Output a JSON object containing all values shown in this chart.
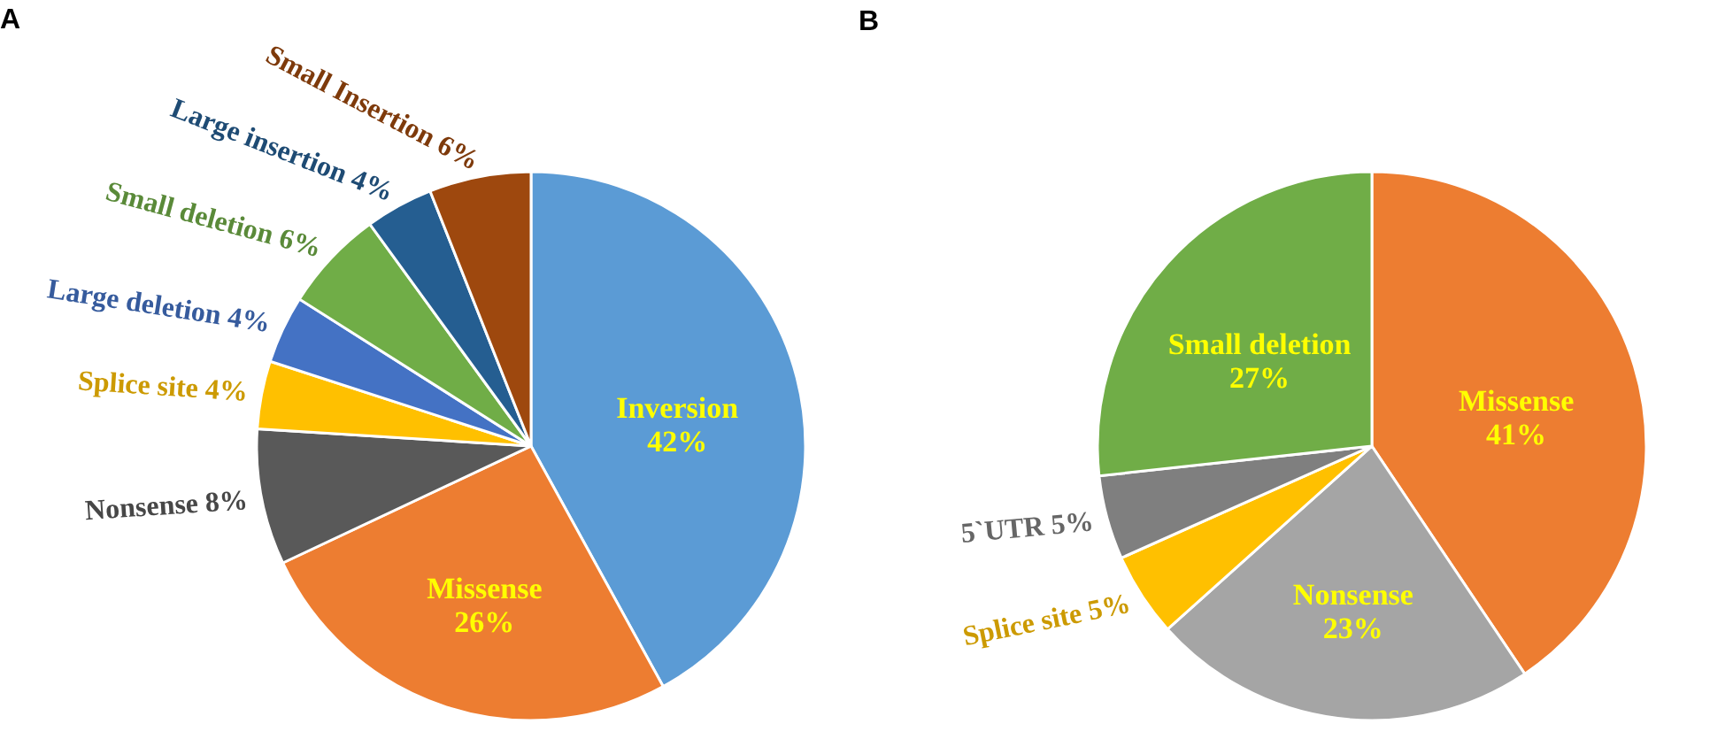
{
  "chart_data": [
    {
      "type": "pie",
      "title": "A",
      "categories": [
        "Inversion",
        "Missense",
        "Nonsense",
        "Splice site",
        "Large deletion",
        "Small deletion",
        "Large insertion",
        "Small Insertion"
      ],
      "values": [
        42,
        26,
        8,
        4,
        4,
        6,
        4,
        6
      ],
      "colors": [
        "#5b9bd5",
        "#ed7d31",
        "#595959",
        "#ffc000",
        "#4472c4",
        "#70ad47",
        "#255e91",
        "#9e480e"
      ],
      "value_labels": [
        "42%",
        "26%",
        "8%",
        "4%",
        "4%",
        "6%",
        "4%",
        "6%"
      ],
      "legend": false
    },
    {
      "type": "pie",
      "title": "B",
      "categories": [
        "Missense",
        "Nonsense",
        "Splice site",
        "5`UTR",
        "Small deletion"
      ],
      "values": [
        41,
        23,
        5,
        5,
        27
      ],
      "colors": [
        "#ed7d31",
        "#a5a5a5",
        "#ffc000",
        "#7f7f7f",
        "#70ad47"
      ],
      "value_labels": [
        "41%",
        "23%",
        "5%",
        "5%",
        "27%"
      ],
      "legend": false
    }
  ]
}
